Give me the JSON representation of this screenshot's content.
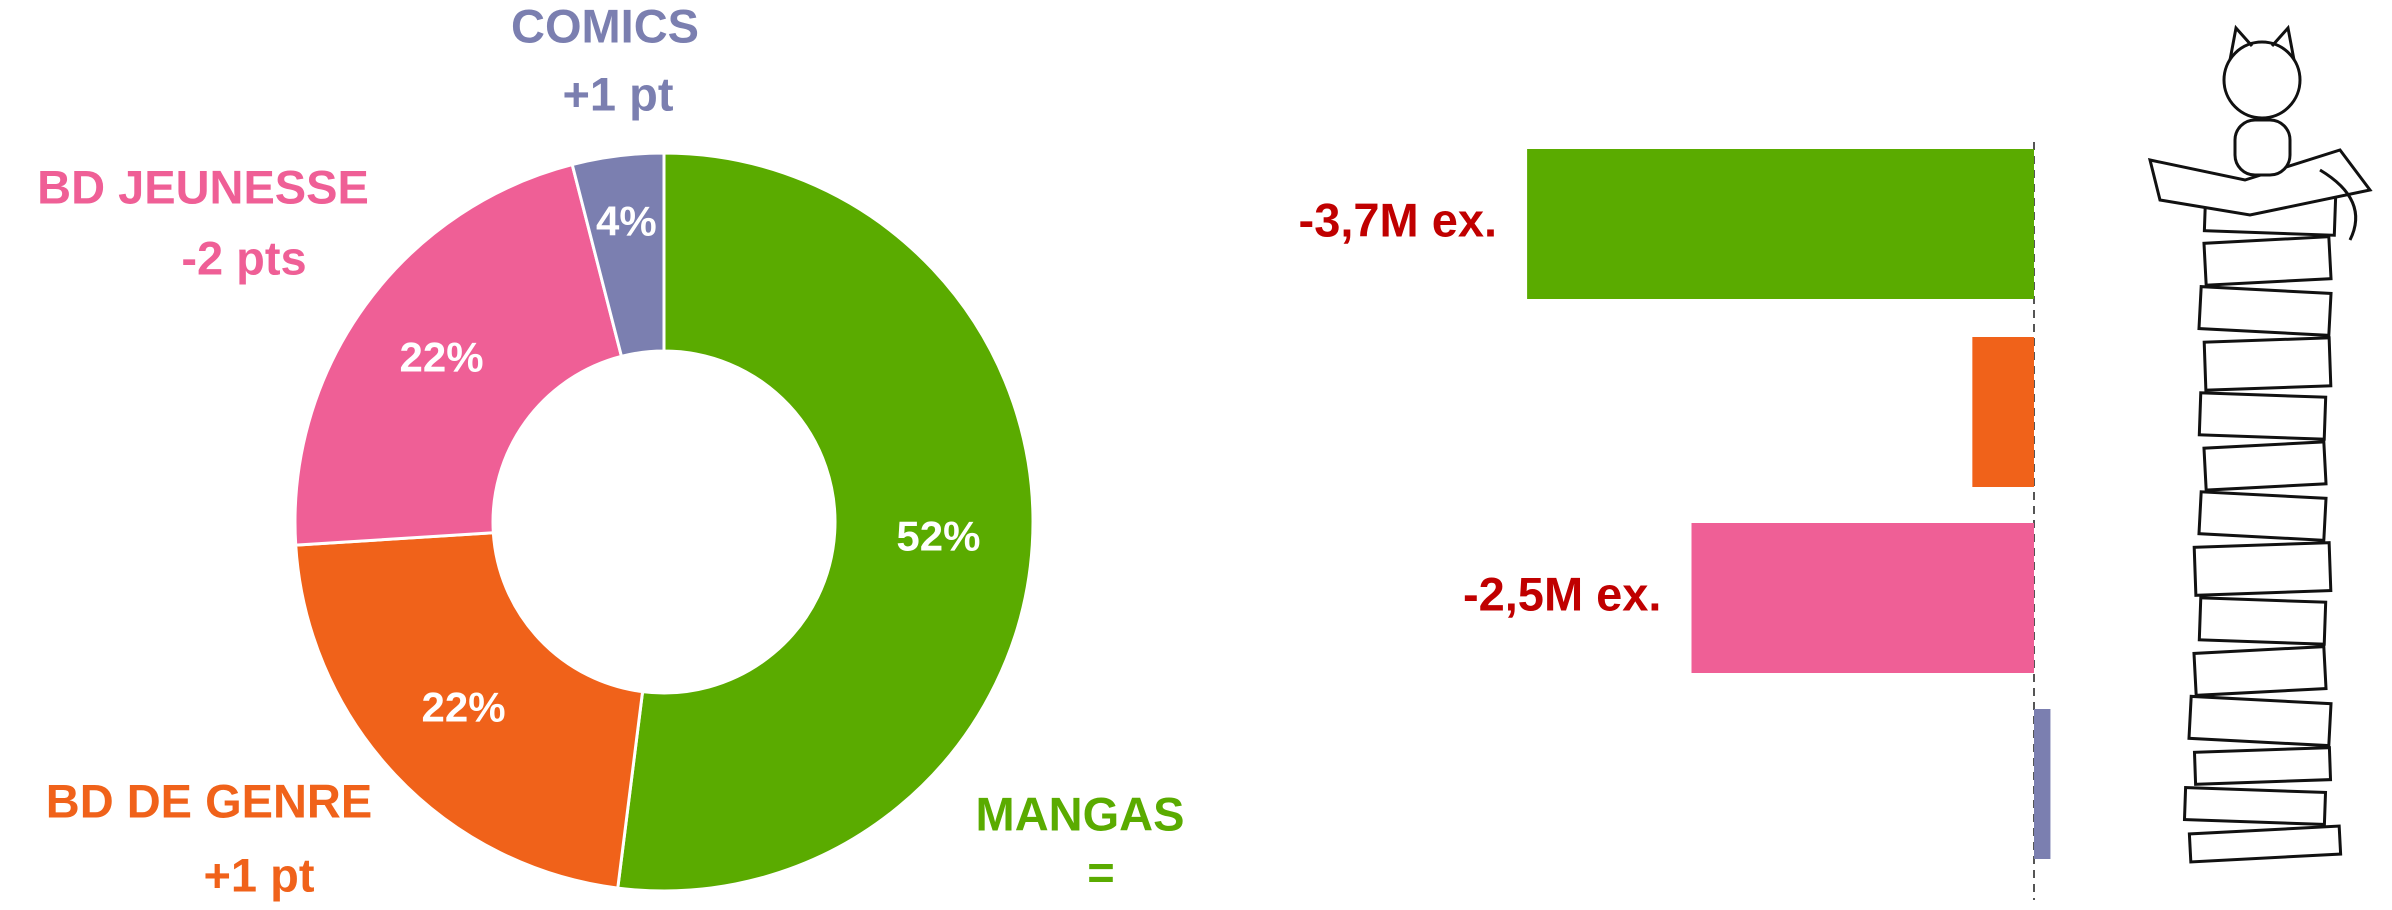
{
  "chart_data": [
    {
      "type": "pie",
      "donut": true,
      "categories": [
        "MANGAS",
        "BD DE GENRE",
        "BD JEUNESSE",
        "COMICS"
      ],
      "values": [
        52,
        22,
        22,
        4
      ],
      "value_labels": [
        "52%",
        "22%",
        "22%",
        "4%"
      ],
      "changes": [
        "=",
        "+1 pt",
        "-2 pts",
        "+1 pt"
      ],
      "colors": [
        "#5aab00",
        "#f0621a",
        "#ef5f96",
        "#7b7fb0"
      ]
    },
    {
      "type": "bar",
      "orientation": "horizontal",
      "values": [
        -3.7,
        -0.45,
        -2.5,
        0.12
      ],
      "value_labels": [
        "-3,7M ex.",
        null,
        "-2,5M ex.",
        null
      ],
      "colors": [
        "#5aab00",
        "#f0621a",
        "#ef5f96",
        "#7b7fb0"
      ],
      "label_color": "#c00000"
    }
  ]
}
